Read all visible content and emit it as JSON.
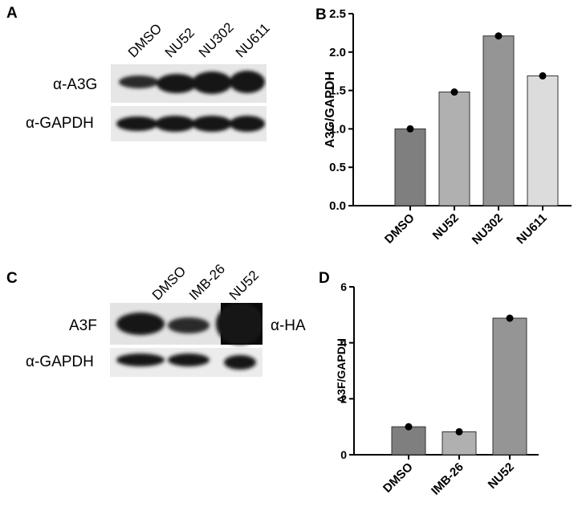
{
  "panels": {
    "a": "A",
    "b": "B",
    "c": "C",
    "d": "D"
  },
  "blot_a": {
    "lanes": [
      "DMSO",
      "NU52",
      "NU302",
      "NU611"
    ],
    "row1_label": "α-A3G",
    "row2_label": "α-GAPDH"
  },
  "blot_c": {
    "lanes": [
      "DMSO",
      "IMB-26",
      "NU52"
    ],
    "row1_label": "A3F",
    "row1_right_label": "α-HA",
    "row2_label": "α-GAPDH"
  },
  "chart_data": [
    {
      "type": "bar",
      "panel": "B",
      "categories": [
        "DMSO",
        "NU52",
        "NU302",
        "NU611"
      ],
      "values": [
        1.0,
        1.48,
        2.21,
        1.69
      ],
      "points": [
        1.0,
        1.48,
        2.21,
        1.69
      ],
      "ylabel": "A3G/GAPDH",
      "ylim": [
        0,
        2.5
      ],
      "yticks": [
        "0.0",
        "0.5",
        "1.0",
        "1.5",
        "2.0",
        "2.5"
      ],
      "bar_colors": [
        "#7f7f7f",
        "#b0b0b0",
        "#959595",
        "#dcdcdc"
      ]
    },
    {
      "type": "bar",
      "panel": "D",
      "categories": [
        "DMSO",
        "IMB-26",
        "NU52"
      ],
      "values": [
        1.0,
        0.82,
        4.88
      ],
      "points": [
        1.0,
        0.82,
        4.88
      ],
      "ylabel": "A3F/GAPDH",
      "ylim": [
        0,
        6
      ],
      "yticks": [
        "0",
        "2",
        "4",
        "6"
      ],
      "bar_colors": [
        "#7f7f7f",
        "#b0b0b0",
        "#959595"
      ]
    }
  ]
}
